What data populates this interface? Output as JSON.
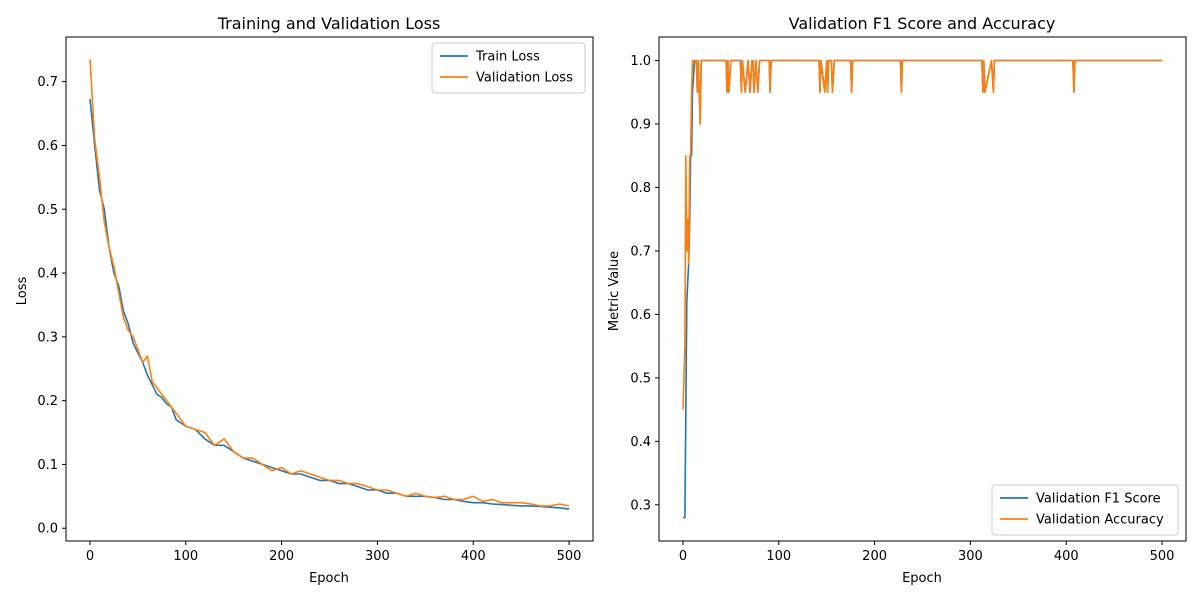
{
  "chart_data": [
    {
      "type": "line",
      "title": "Training and Validation Loss",
      "xlabel": "Epoch",
      "ylabel": "Loss",
      "xlim": [
        -25,
        525
      ],
      "ylim": [
        -0.02,
        0.77
      ],
      "xticks": [
        0,
        100,
        200,
        300,
        400,
        500
      ],
      "yticks": [
        0.0,
        0.1,
        0.2,
        0.3,
        0.4,
        0.5,
        0.6,
        0.7
      ],
      "grid": false,
      "legend": "upper-right",
      "series": [
        {
          "name": "Train Loss",
          "color": "#1f77b4",
          "x": [
            0,
            5,
            10,
            15,
            20,
            25,
            30,
            35,
            40,
            45,
            50,
            55,
            60,
            65,
            70,
            75,
            80,
            85,
            90,
            95,
            100,
            110,
            120,
            130,
            140,
            150,
            160,
            170,
            180,
            190,
            200,
            210,
            220,
            230,
            240,
            250,
            260,
            270,
            280,
            290,
            300,
            310,
            320,
            330,
            340,
            350,
            360,
            370,
            380,
            390,
            400,
            410,
            420,
            430,
            440,
            450,
            460,
            470,
            480,
            490,
            500
          ],
          "values": [
            0.673,
            0.6,
            0.53,
            0.5,
            0.44,
            0.4,
            0.38,
            0.34,
            0.32,
            0.29,
            0.275,
            0.26,
            0.24,
            0.225,
            0.21,
            0.205,
            0.195,
            0.19,
            0.17,
            0.165,
            0.16,
            0.155,
            0.14,
            0.13,
            0.13,
            0.12,
            0.11,
            0.105,
            0.1,
            0.095,
            0.09,
            0.085,
            0.085,
            0.08,
            0.075,
            0.075,
            0.07,
            0.07,
            0.065,
            0.06,
            0.06,
            0.055,
            0.055,
            0.05,
            0.05,
            0.05,
            0.048,
            0.045,
            0.045,
            0.042,
            0.04,
            0.04,
            0.038,
            0.037,
            0.036,
            0.035,
            0.035,
            0.034,
            0.033,
            0.032,
            0.03
          ]
        },
        {
          "name": "Validation Loss",
          "color": "#ff7f0e",
          "x": [
            0,
            5,
            10,
            15,
            20,
            25,
            30,
            35,
            40,
            45,
            50,
            55,
            60,
            65,
            70,
            75,
            80,
            85,
            90,
            95,
            100,
            110,
            120,
            130,
            140,
            150,
            160,
            170,
            180,
            190,
            200,
            210,
            220,
            230,
            240,
            250,
            260,
            270,
            280,
            290,
            300,
            310,
            320,
            330,
            340,
            350,
            360,
            370,
            380,
            390,
            400,
            410,
            420,
            430,
            440,
            450,
            460,
            470,
            480,
            490,
            500
          ],
          "values": [
            0.735,
            0.61,
            0.55,
            0.48,
            0.44,
            0.41,
            0.37,
            0.33,
            0.31,
            0.3,
            0.28,
            0.26,
            0.27,
            0.23,
            0.22,
            0.21,
            0.2,
            0.19,
            0.18,
            0.17,
            0.16,
            0.155,
            0.15,
            0.13,
            0.14,
            0.12,
            0.11,
            0.11,
            0.1,
            0.09,
            0.095,
            0.085,
            0.09,
            0.085,
            0.08,
            0.075,
            0.075,
            0.07,
            0.07,
            0.065,
            0.06,
            0.06,
            0.055,
            0.05,
            0.055,
            0.05,
            0.048,
            0.05,
            0.045,
            0.045,
            0.05,
            0.042,
            0.045,
            0.04,
            0.04,
            0.04,
            0.038,
            0.035,
            0.035,
            0.038,
            0.035
          ]
        }
      ]
    },
    {
      "type": "line",
      "title": "Validation F1 Score and Accuracy",
      "xlabel": "Epoch",
      "ylabel": "Metric Value",
      "xlim": [
        -25,
        525
      ],
      "ylim": [
        0.243,
        1.037
      ],
      "xticks": [
        0,
        100,
        200,
        300,
        400,
        500
      ],
      "yticks": [
        0.3,
        0.4,
        0.5,
        0.6,
        0.7,
        0.8,
        0.9,
        1.0
      ],
      "grid": false,
      "legend": "lower-right",
      "series": [
        {
          "name": "Validation F1 Score",
          "color": "#1f77b4",
          "x": [
            0,
            2,
            4,
            5,
            6,
            7,
            8,
            9,
            10,
            12,
            14,
            15,
            16,
            17,
            18,
            19,
            20,
            25,
            40,
            45,
            46,
            47,
            48,
            50,
            60,
            61,
            62,
            65,
            68,
            70,
            72,
            73,
            74,
            76,
            78,
            80,
            90,
            91,
            92,
            140,
            142,
            143,
            144,
            148,
            150,
            151,
            152,
            155,
            156,
            158,
            160,
            175,
            176,
            177,
            178,
            225,
            227,
            228,
            229,
            230,
            310,
            312,
            313,
            314,
            315,
            322,
            324,
            325,
            326,
            405,
            407,
            408,
            409,
            410,
            500
          ],
          "values": [
            0.28,
            0.28,
            0.62,
            0.65,
            0.68,
            0.75,
            0.85,
            0.85,
            0.95,
            1.0,
            1.0,
            0.95,
            1.0,
            0.95,
            0.9,
            1.0,
            1.0,
            1.0,
            1.0,
            1.0,
            0.95,
            1.0,
            0.95,
            1.0,
            1.0,
            0.95,
            1.0,
            0.95,
            1.0,
            0.95,
            1.0,
            1.0,
            0.95,
            1.0,
            0.95,
            1.0,
            1.0,
            0.95,
            1.0,
            1.0,
            1.0,
            0.95,
            1.0,
            0.95,
            1.0,
            0.95,
            1.0,
            1.0,
            0.95,
            1.0,
            1.0,
            1.0,
            0.95,
            1.0,
            1.0,
            1.0,
            1.0,
            0.95,
            1.0,
            1.0,
            1.0,
            1.0,
            0.95,
            1.0,
            0.95,
            1.0,
            0.95,
            1.0,
            1.0,
            1.0,
            1.0,
            0.95,
            1.0,
            1.0,
            1.0
          ]
        },
        {
          "name": "Validation Accuracy",
          "color": "#ff7f0e",
          "x": [
            0,
            2,
            3,
            4,
            5,
            6,
            7,
            8,
            9,
            10,
            12,
            14,
            15,
            16,
            17,
            18,
            19,
            20,
            25,
            40,
            45,
            46,
            47,
            48,
            50,
            60,
            61,
            62,
            65,
            68,
            70,
            72,
            73,
            74,
            76,
            78,
            80,
            90,
            91,
            92,
            140,
            142,
            143,
            144,
            148,
            150,
            151,
            152,
            155,
            156,
            158,
            160,
            175,
            176,
            177,
            178,
            225,
            227,
            228,
            229,
            230,
            310,
            312,
            313,
            314,
            315,
            322,
            324,
            325,
            326,
            405,
            407,
            408,
            409,
            410,
            500
          ],
          "values": [
            0.45,
            0.55,
            0.85,
            0.7,
            0.75,
            0.68,
            0.85,
            0.85,
            0.95,
            1.0,
            1.0,
            1.0,
            0.95,
            1.0,
            0.95,
            0.9,
            1.0,
            1.0,
            1.0,
            1.0,
            1.0,
            0.95,
            1.0,
            0.95,
            1.0,
            1.0,
            0.95,
            1.0,
            0.95,
            1.0,
            0.95,
            1.0,
            1.0,
            0.95,
            1.0,
            0.95,
            1.0,
            1.0,
            0.95,
            1.0,
            1.0,
            1.0,
            0.95,
            1.0,
            0.95,
            1.0,
            0.95,
            1.0,
            1.0,
            0.95,
            1.0,
            1.0,
            1.0,
            0.95,
            1.0,
            1.0,
            1.0,
            1.0,
            0.95,
            1.0,
            1.0,
            1.0,
            1.0,
            0.95,
            1.0,
            0.95,
            1.0,
            0.95,
            1.0,
            1.0,
            1.0,
            1.0,
            0.95,
            1.0,
            1.0,
            1.0
          ]
        }
      ]
    }
  ]
}
